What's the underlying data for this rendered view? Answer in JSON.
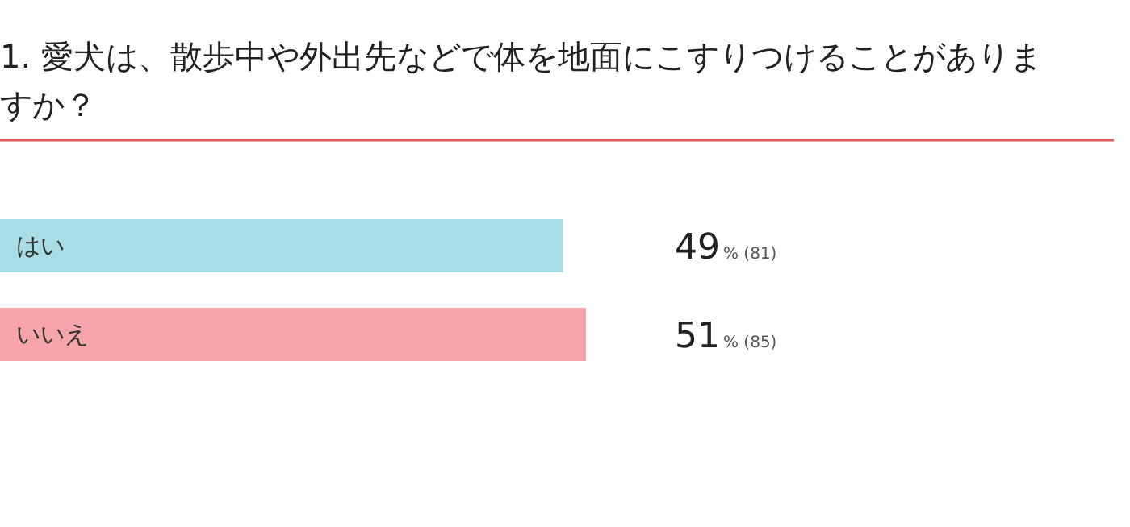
{
  "chart_data": {
    "type": "bar",
    "orientation": "horizontal",
    "title": "1. 愛犬は、散歩中や外出先などで体を地面にこすりつけることがありますか？",
    "categories": [
      "はい",
      "いいえ"
    ],
    "values": [
      49,
      51
    ],
    "colors": [
      "#a8dde6",
      "#f7a5aa"
    ],
    "value_labels": [
      "49% (81)",
      "51% (85)"
    ]
  }
}
